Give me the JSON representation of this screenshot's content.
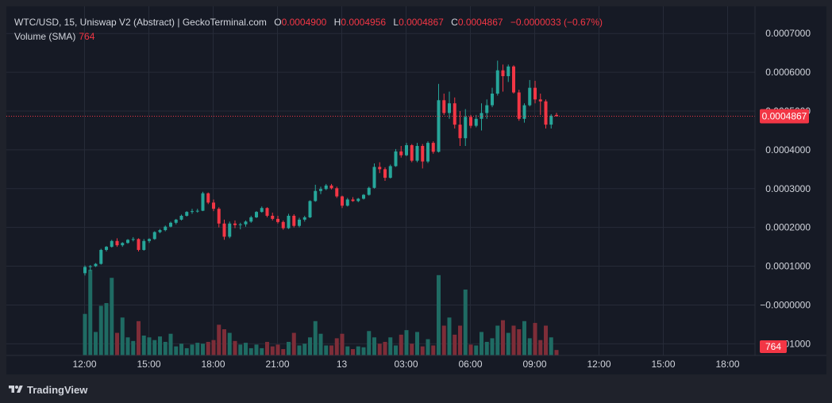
{
  "header": {
    "symbol_line": "WTC/USD, 15, Uniswap V2 (Abstract) | GeckoTerminal.com",
    "o_label": "O",
    "o_value": "0.0004900",
    "h_label": "H",
    "h_value": "0.0004956",
    "l_label": "L",
    "l_value": "0.0004867",
    "c_label": "C",
    "c_value": "0.0004867",
    "change": "−0.0000033 (−0.67%)",
    "volume_label": "Volume (SMA)",
    "volume_value": "764"
  },
  "footer": {
    "brand": "TradingView",
    "logo_icon": "tradingview-logo-icon"
  },
  "colors": {
    "up": "#26a69a",
    "down": "#f23645",
    "vol_up": "#1f6b63",
    "vol_down": "#7e2d38",
    "grid": "#262b38",
    "text": "#d1d4dc",
    "bg": "#161a25"
  },
  "chart_data": {
    "type": "candlestick",
    "price_axis": {
      "ylim": [
        -0.00013,
        0.00077
      ],
      "ticks": [
        0.0007,
        0.0006,
        0.0005,
        0.0004,
        0.0003,
        0.0002,
        0.0001,
        0.0,
        -0.0001
      ],
      "tick_labels": [
        "0.0007000",
        "0.0006000",
        "0.0005000",
        "0.0004000",
        "0.0003000",
        "0.0002000",
        "0.0001000",
        "−0.0000000",
        "−0.0001000"
      ],
      "last_price": 0.0004867,
      "last_price_label": "0.0004867",
      "last_volume_label": "764"
    },
    "time_axis": {
      "tick_labels": [
        "12:00",
        "15:00",
        "18:00",
        "21:00",
        "13",
        "03:00",
        "06:00",
        "09:00",
        "12:00",
        "15:00",
        "18:00"
      ],
      "tick_bars": [
        0,
        12,
        24,
        36,
        48,
        60,
        72,
        84,
        96,
        108,
        120
      ],
      "bar_interval_minutes": 15
    },
    "candles": [
      [
        8.2e-05,
        0.000102,
        7.6e-05,
        9.8e-05,
        460
      ],
      [
        9.8e-05,
        0.000103,
        8.8e-05,
        0.0001,
        950
      ],
      [
        0.0001,
        0.000108,
        9.8e-05,
        0.000106,
        260
      ],
      [
        0.000106,
        0.000145,
        0.000104,
        0.000142,
        550
      ],
      [
        0.000142,
        0.000152,
        0.000138,
        0.00015,
        580
      ],
      [
        0.00015,
        0.000168,
        0.000148,
        0.000165,
        860
      ],
      [
        0.000165,
        0.000172,
        0.00015,
        0.000154,
        250
      ],
      [
        0.000154,
        0.000162,
        0.00015,
        0.00016,
        420
      ],
      [
        0.00016,
        0.00017,
        0.000158,
        0.000168,
        200
      ],
      [
        0.000168,
        0.000175,
        0.000164,
        0.00017,
        160
      ],
      [
        0.00017,
        0.000172,
        0.000138,
        0.000142,
        380
      ],
      [
        0.000142,
        0.00017,
        0.00014,
        0.000165,
        220
      ],
      [
        0.000165,
        0.000172,
        0.00016,
        0.00017,
        200
      ],
      [
        0.00017,
        0.00019,
        0.000168,
        0.000188,
        170
      ],
      [
        0.000188,
        0.000196,
        0.000185,
        0.000193,
        210
      ],
      [
        0.000193,
        0.000205,
        0.00019,
        0.000202,
        150
      ],
      [
        0.000202,
        0.000215,
        0.0002,
        0.000212,
        240
      ],
      [
        0.000212,
        0.000222,
        0.000208,
        0.00022,
        100
      ],
      [
        0.00022,
        0.000233,
        0.000218,
        0.00023,
        130
      ],
      [
        0.00023,
        0.000242,
        0.000228,
        0.00024,
        80
      ],
      [
        0.00024,
        0.000248,
        0.000235,
        0.000242,
        120
      ],
      [
        0.000242,
        0.000248,
        0.000238,
        0.000243,
        140
      ],
      [
        0.000243,
        0.000292,
        0.000242,
        0.000288,
        130
      ],
      [
        0.000288,
        0.00029,
        0.00026,
        0.000264,
        150
      ],
      [
        0.000264,
        0.000272,
        0.000242,
        0.000248,
        170
      ],
      [
        0.000248,
        0.000252,
        0.0002,
        0.00021,
        340
      ],
      [
        0.00021,
        0.00022,
        0.000168,
        0.000176,
        290
      ],
      [
        0.000176,
        0.000215,
        0.000172,
        0.00021,
        250
      ],
      [
        0.00021,
        0.000218,
        0.000198,
        0.000206,
        160
      ],
      [
        0.000206,
        0.000212,
        0.000195,
        0.000208,
        120
      ],
      [
        0.000208,
        0.000218,
        0.000202,
        0.000215,
        140
      ],
      [
        0.000215,
        0.00023,
        0.000212,
        0.000226,
        80
      ],
      [
        0.000226,
        0.000242,
        0.000224,
        0.00024,
        120
      ],
      [
        0.00024,
        0.000254,
        0.000238,
        0.00025,
        80
      ],
      [
        0.00025,
        0.000252,
        0.000226,
        0.00023,
        150
      ],
      [
        0.00023,
        0.000238,
        0.000218,
        0.000222,
        100
      ],
      [
        0.000222,
        0.00023,
        0.00021,
        0.000214,
        120
      ],
      [
        0.000214,
        0.000218,
        0.000194,
        0.000198,
        70
      ],
      [
        0.000198,
        0.000235,
        0.000196,
        0.00023,
        150
      ],
      [
        0.00023,
        0.000234,
        0.0002,
        0.000204,
        250
      ],
      [
        0.000204,
        0.000225,
        0.0002,
        0.00022,
        110
      ],
      [
        0.00022,
        0.00023,
        0.000215,
        0.000226,
        130
      ],
      [
        0.000226,
        0.00027,
        0.000224,
        0.000268,
        200
      ],
      [
        0.000268,
        0.00031,
        0.000266,
        0.000294,
        380
      ],
      [
        0.000294,
        0.000305,
        0.000286,
        0.000299,
        240
      ],
      [
        0.000299,
        0.000312,
        0.000296,
        0.000308,
        110
      ],
      [
        0.000308,
        0.000312,
        0.000298,
        0.000301,
        110
      ],
      [
        0.000301,
        0.000305,
        0.000276,
        0.00028,
        190
      ],
      [
        0.00028,
        0.000282,
        0.00025,
        0.000256,
        240
      ],
      [
        0.000256,
        0.000276,
        0.000254,
        0.000272,
        100
      ],
      [
        0.000272,
        0.000278,
        0.000266,
        0.000268,
        70
      ],
      [
        0.000268,
        0.000276,
        0.000265,
        0.000274,
        100
      ],
      [
        0.000274,
        0.000286,
        0.000272,
        0.000284,
        90
      ],
      [
        0.000284,
        0.000305,
        0.000282,
        0.000302,
        270
      ],
      [
        0.000302,
        0.000365,
        0.0003,
        0.000356,
        200
      ],
      [
        0.000356,
        0.000368,
        0.00034,
        0.00035,
        130
      ],
      [
        0.00035,
        0.000355,
        0.00032,
        0.000328,
        150
      ],
      [
        0.000328,
        0.000362,
        0.000326,
        0.000358,
        200
      ],
      [
        0.000358,
        0.000402,
        0.000356,
        0.000396,
        110
      ],
      [
        0.000396,
        0.00041,
        0.00038,
        0.000386,
        230
      ],
      [
        0.000386,
        0.000418,
        0.000384,
        0.000412,
        280
      ],
      [
        0.000412,
        0.000415,
        0.000368,
        0.000372,
        130
      ],
      [
        0.000372,
        0.000418,
        0.000368,
        0.00041,
        260
      ],
      [
        0.00041,
        0.000415,
        0.000352,
        0.00037,
        100
      ],
      [
        0.00037,
        0.000422,
        0.000366,
        0.000418,
        180
      ],
      [
        0.000418,
        0.000422,
        0.00039,
        0.000395,
        110
      ],
      [
        0.000395,
        0.00057,
        0.000393,
        0.000528,
        890
      ],
      [
        0.000528,
        0.000545,
        0.00049,
        0.000495,
        330
      ],
      [
        0.000495,
        0.00055,
        0.00048,
        0.00052,
        420
      ],
      [
        0.00052,
        0.000535,
        0.000455,
        0.000465,
        230
      ],
      [
        0.000465,
        0.0005,
        0.00041,
        0.00043,
        330
      ],
      [
        0.00043,
        0.000505,
        0.00041,
        0.000485,
        730
      ],
      [
        0.000485,
        0.00049,
        0.000456,
        0.000462,
        120
      ],
      [
        0.000462,
        0.00049,
        0.000458,
        0.00048,
        110
      ],
      [
        0.00048,
        0.00052,
        0.00045,
        0.000495,
        260
      ],
      [
        0.000495,
        0.00053,
        0.00048,
        0.000515,
        150
      ],
      [
        0.000515,
        0.00056,
        0.00051,
        0.000545,
        190
      ],
      [
        0.000545,
        0.00063,
        0.00054,
        0.000605,
        330
      ],
      [
        0.000605,
        0.00062,
        0.00055,
        0.00059,
        390
      ],
      [
        0.00059,
        0.00062,
        0.000575,
        0.000615,
        250
      ],
      [
        0.000615,
        0.000618,
        0.000545,
        0.000548,
        330
      ],
      [
        0.000548,
        0.000555,
        0.000475,
        0.00048,
        290
      ],
      [
        0.00048,
        0.00052,
        0.00047,
        0.000515,
        380
      ],
      [
        0.000515,
        0.00058,
        0.000512,
        0.00056,
        190
      ],
      [
        0.00056,
        0.000578,
        0.00052,
        0.00053,
        360
      ],
      [
        0.00053,
        0.000545,
        0.00049,
        0.000525,
        170
      ],
      [
        0.000525,
        0.00053,
        0.000455,
        0.000465,
        330
      ],
      [
        0.000465,
        0.000492,
        0.000455,
        0.000488,
        200
      ],
      [
        0.00049,
        0.0004956,
        0.0004867,
        0.0004867,
        60
      ]
    ]
  }
}
